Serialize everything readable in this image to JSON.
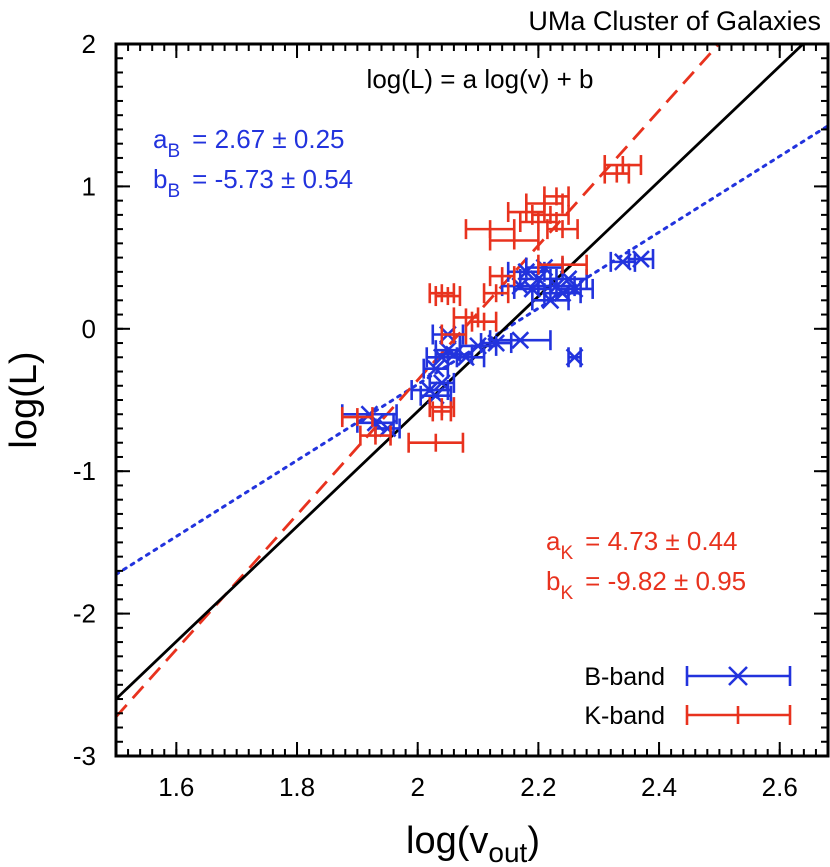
{
  "chart_data": {
    "type": "scatter",
    "title": "UMa Cluster of Galaxies",
    "xlabel": "log(v",
    "xlabel_sub": "out",
    "xlabel_close": ")",
    "ylabel": "log(L)",
    "xlim": [
      1.5,
      2.68
    ],
    "ylim": [
      -3,
      2
    ],
    "xticks": [
      "1.6",
      "1.8",
      "2",
      "2.2",
      "2.4",
      "2.6"
    ],
    "xtick_values": [
      1.6,
      1.8,
      2.0,
      2.2,
      2.4,
      2.6
    ],
    "yticks": [
      "2",
      "1",
      "0",
      "-1",
      "-2",
      "-3"
    ],
    "ytick_values": [
      2,
      1,
      0,
      -1,
      -2,
      -3
    ],
    "grid": false,
    "equation": "log(L) = a log(v) + b",
    "fits": {
      "b_band": {
        "a_label": "a",
        "a_sub": "B",
        "a_value": "= 2.67 ± 0.25",
        "b_label": "b",
        "b_sub": "B",
        "b_value": "= -5.73 ± 0.54",
        "slope": 2.67,
        "intercept": -5.73,
        "color": "#2233dd",
        "style": "dotted"
      },
      "k_band": {
        "a_label": "a",
        "a_sub": "K",
        "a_value": "= 4.73 ± 0.44",
        "b_label": "b",
        "b_sub": "K",
        "b_value": "= -9.82 ± 0.95",
        "slope": 4.73,
        "intercept": -9.82,
        "color": "#e8321e",
        "style": "dashed"
      },
      "combined": {
        "slope": 4.04,
        "intercept": -8.66,
        "color": "#000000",
        "style": "solid"
      }
    },
    "legend": {
      "position": "bottom-right",
      "b_label": "B-band",
      "k_label": "K-band"
    },
    "series": [
      {
        "name": "B-band",
        "color": "#2233dd",
        "marker": "x",
        "points": [
          {
            "x": 1.92,
            "y": -0.6,
            "xerr": 0.045
          },
          {
            "x": 1.93,
            "y": -0.66,
            "xerr": 0.03
          },
          {
            "x": 1.95,
            "y": -0.7,
            "xerr": 0.02
          },
          {
            "x": 2.02,
            "y": -0.43,
            "xerr": 0.03
          },
          {
            "x": 2.03,
            "y": -0.47,
            "xerr": 0.025
          },
          {
            "x": 2.03,
            "y": -0.28,
            "xerr": 0.02
          },
          {
            "x": 2.04,
            "y": -0.38,
            "xerr": 0.02
          },
          {
            "x": 2.04,
            "y": -0.2,
            "xerr": 0.025
          },
          {
            "x": 2.05,
            "y": -0.04,
            "xerr": 0.025
          },
          {
            "x": 2.05,
            "y": -0.15,
            "xerr": 0.02
          },
          {
            "x": 2.06,
            "y": -0.18,
            "xerr": 0.03
          },
          {
            "x": 2.08,
            "y": -0.2,
            "xerr": 0.03
          },
          {
            "x": 2.1,
            "y": -0.12,
            "xerr": 0.03
          },
          {
            "x": 2.13,
            "y": -0.1,
            "xerr": 0.025
          },
          {
            "x": 2.17,
            "y": -0.08,
            "xerr": 0.05
          },
          {
            "x": 2.17,
            "y": 0.3,
            "xerr": 0.03
          },
          {
            "x": 2.18,
            "y": 0.4,
            "xerr": 0.03
          },
          {
            "x": 2.19,
            "y": 0.28,
            "xerr": 0.03
          },
          {
            "x": 2.2,
            "y": 0.35,
            "xerr": 0.03
          },
          {
            "x": 2.21,
            "y": 0.43,
            "xerr": 0.03
          },
          {
            "x": 2.22,
            "y": 0.2,
            "xerr": 0.03
          },
          {
            "x": 2.23,
            "y": 0.3,
            "xerr": 0.03
          },
          {
            "x": 2.24,
            "y": 0.25,
            "xerr": 0.03
          },
          {
            "x": 2.25,
            "y": 0.35,
            "xerr": 0.03
          },
          {
            "x": 2.26,
            "y": 0.28,
            "xerr": 0.03
          },
          {
            "x": 2.26,
            "y": -0.2,
            "xerr": 0.01
          },
          {
            "x": 2.34,
            "y": 0.47,
            "xerr": 0.02
          },
          {
            "x": 2.37,
            "y": 0.49,
            "xerr": 0.02
          }
        ]
      },
      {
        "name": "K-band",
        "color": "#e8321e",
        "marker": "tick",
        "points": [
          {
            "x": 1.9,
            "y": -0.62,
            "xerr": 0.025
          },
          {
            "x": 1.93,
            "y": -0.75,
            "xerr": 0.025
          },
          {
            "x": 2.03,
            "y": -0.8,
            "xerr": 0.045
          },
          {
            "x": 2.04,
            "y": -0.55,
            "xerr": 0.02
          },
          {
            "x": 2.04,
            "y": -0.58,
            "xerr": 0.015
          },
          {
            "x": 2.04,
            "y": 0.25,
            "xerr": 0.02
          },
          {
            "x": 2.05,
            "y": 0.23,
            "xerr": 0.02
          },
          {
            "x": 2.06,
            "y": -0.04,
            "xerr": 0.02
          },
          {
            "x": 2.08,
            "y": 0.08,
            "xerr": 0.02
          },
          {
            "x": 2.11,
            "y": 0.05,
            "xerr": 0.02
          },
          {
            "x": 2.13,
            "y": 0.25,
            "xerr": 0.02
          },
          {
            "x": 2.12,
            "y": 0.7,
            "xerr": 0.04
          },
          {
            "x": 2.14,
            "y": 0.37,
            "xerr": 0.02
          },
          {
            "x": 2.16,
            "y": 0.62,
            "xerr": 0.04
          },
          {
            "x": 2.18,
            "y": 0.82,
            "xerr": 0.03
          },
          {
            "x": 2.2,
            "y": 0.75,
            "xerr": 0.03
          },
          {
            "x": 2.21,
            "y": 0.88,
            "xerr": 0.03
          },
          {
            "x": 2.22,
            "y": 0.8,
            "xerr": 0.03
          },
          {
            "x": 2.23,
            "y": 0.93,
            "xerr": 0.02
          },
          {
            "x": 2.24,
            "y": 0.45,
            "xerr": 0.04
          },
          {
            "x": 2.24,
            "y": 0.7,
            "xerr": 0.025
          },
          {
            "x": 2.33,
            "y": 1.09,
            "xerr": 0.02
          },
          {
            "x": 2.34,
            "y": 1.15,
            "xerr": 0.03
          }
        ]
      }
    ]
  }
}
